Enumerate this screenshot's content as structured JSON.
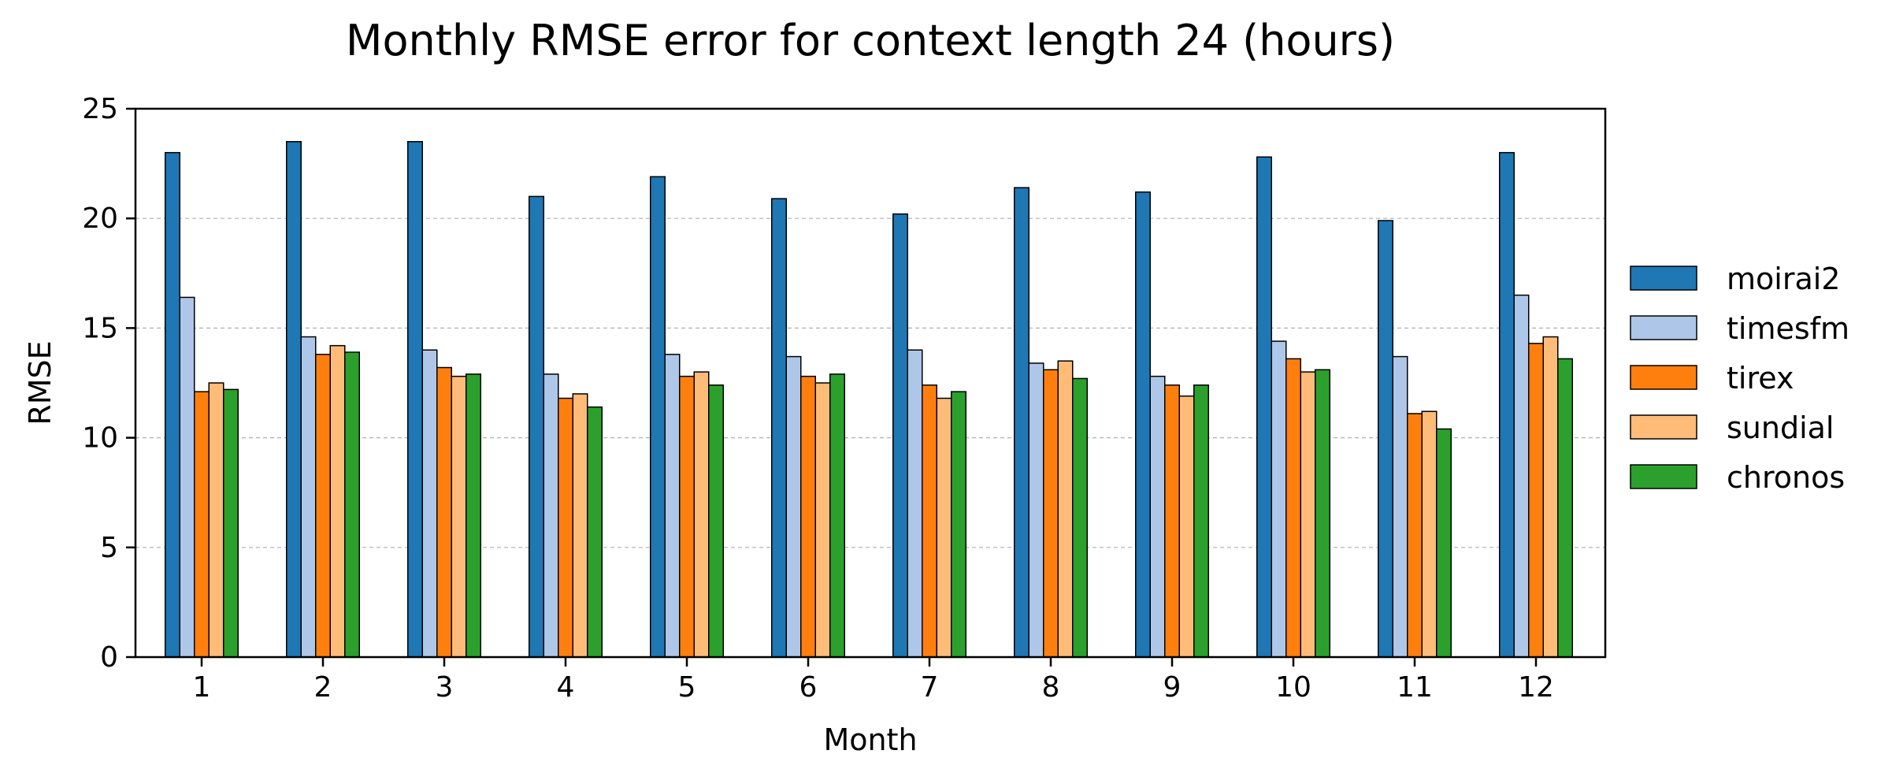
{
  "chart_data": {
    "type": "bar",
    "title": "Monthly RMSE error for context length 24 (hours)",
    "xlabel": "Month",
    "ylabel": "RMSE",
    "ylim": [
      0,
      25
    ],
    "yticks": [
      0,
      5,
      10,
      15,
      20,
      25
    ],
    "grid": "y-dashed",
    "legend_position": "right",
    "categories": [
      "1",
      "2",
      "3",
      "4",
      "5",
      "6",
      "7",
      "8",
      "9",
      "10",
      "11",
      "12"
    ],
    "series": [
      {
        "name": "moirai2",
        "color": "#1f77b4",
        "values": [
          23.0,
          23.5,
          23.5,
          21.0,
          21.9,
          20.9,
          20.2,
          21.4,
          21.2,
          22.8,
          19.9,
          23.0
        ]
      },
      {
        "name": "timesfm",
        "color": "#aec7e8",
        "values": [
          16.4,
          14.6,
          14.0,
          12.9,
          13.8,
          13.7,
          14.0,
          13.4,
          12.8,
          14.4,
          13.7,
          16.5
        ]
      },
      {
        "name": "tirex",
        "color": "#ff7f0e",
        "values": [
          12.1,
          13.8,
          13.2,
          11.8,
          12.8,
          12.8,
          12.4,
          13.1,
          12.4,
          13.6,
          11.1,
          14.3
        ]
      },
      {
        "name": "sundial",
        "color": "#ffbb78",
        "values": [
          12.5,
          14.2,
          12.8,
          12.0,
          13.0,
          12.5,
          11.8,
          13.5,
          11.9,
          13.0,
          11.2,
          14.6
        ]
      },
      {
        "name": "chronos",
        "color": "#2ca02c",
        "values": [
          12.2,
          13.9,
          12.9,
          11.4,
          12.4,
          12.9,
          12.1,
          12.7,
          12.4,
          13.1,
          10.4,
          13.6
        ]
      }
    ]
  }
}
